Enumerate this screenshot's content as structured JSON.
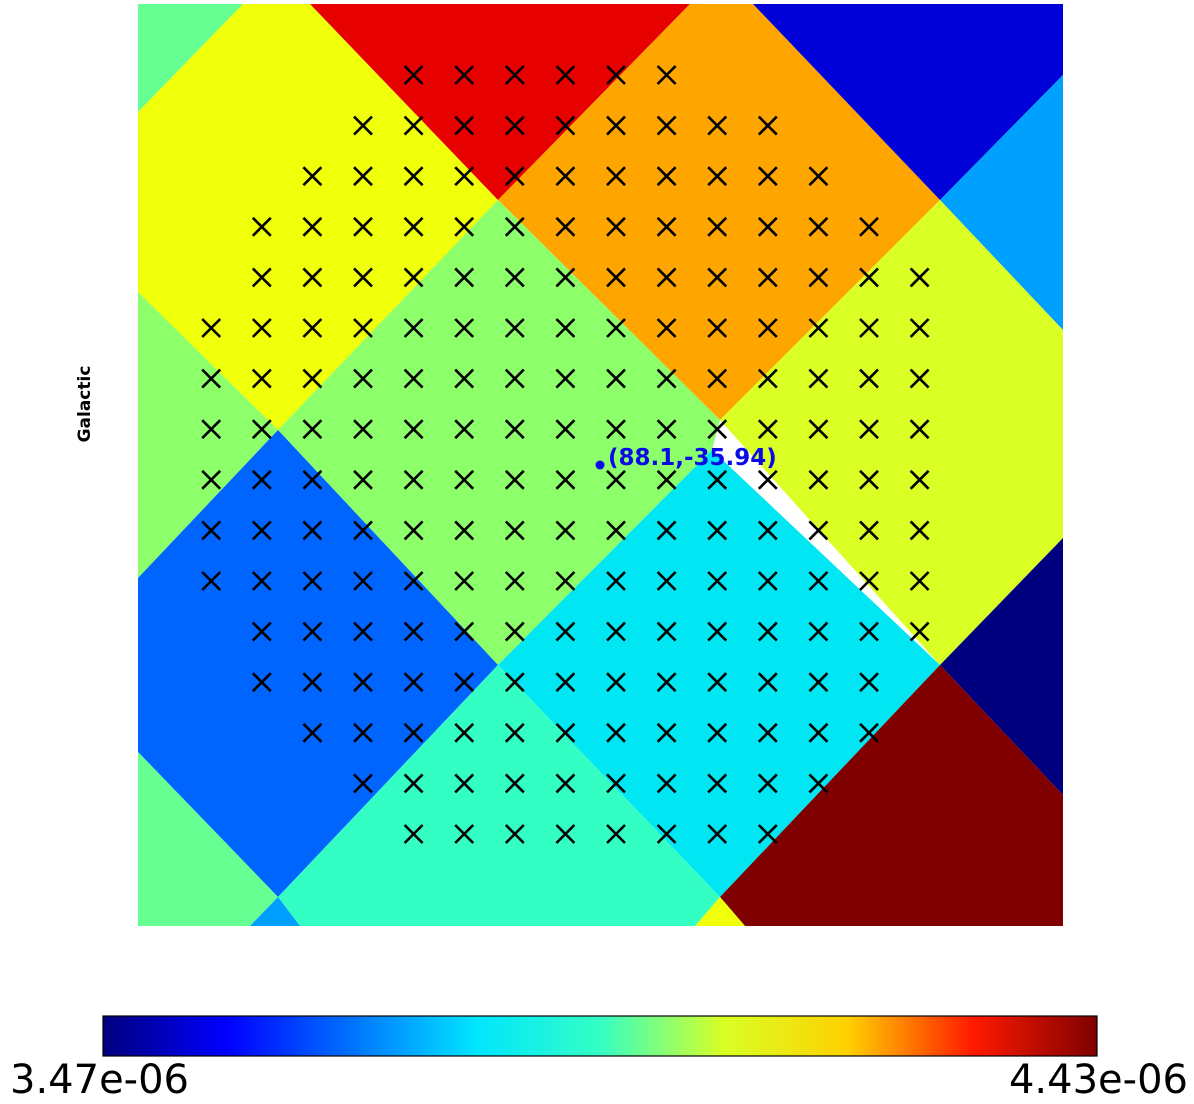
{
  "chart_data": {
    "type": "heatmap",
    "projection": "gnomonic sky map (HEALPix-like pixels)",
    "frame_label": "Galactic",
    "center_annotation": "(88.1,-35.94)",
    "center": {
      "lon": 88.1,
      "lat": -35.94
    },
    "colormap": "jet",
    "colorbar": {
      "min": 3.47e-06,
      "max": 4.43e-06,
      "min_label": "3.47e-06",
      "max_label": "4.43e-06"
    },
    "marker_rows": [
      [
        6,
        11
      ],
      [
        5,
        13
      ],
      [
        4,
        14
      ],
      [
        3,
        15
      ],
      [
        3,
        16
      ],
      [
        2,
        16
      ],
      [
        2,
        16
      ],
      [
        2,
        16
      ],
      [
        2,
        16
      ],
      [
        2,
        16
      ],
      [
        2,
        16
      ],
      [
        3,
        16
      ],
      [
        3,
        15
      ],
      [
        4,
        15
      ],
      [
        5,
        14
      ],
      [
        6,
        13
      ]
    ],
    "colors": {
      "marker": "#000000",
      "annotation": "#0a0ae6",
      "dark_red": "#800000",
      "red": "#e60000",
      "orange": "#ffa500",
      "yellow": "#f0ff0a",
      "yellow_green": "#d9ff24",
      "light_green": "#8cff6a",
      "sea_green": "#66ff91",
      "aquamarine": "#33ffc4",
      "cyan": "#00e6f2",
      "sky_blue": "#009eff",
      "azure": "#00a0ff",
      "mid_blue": "#0064ff",
      "blue": "#0000d9",
      "navy": "#00007f"
    }
  }
}
